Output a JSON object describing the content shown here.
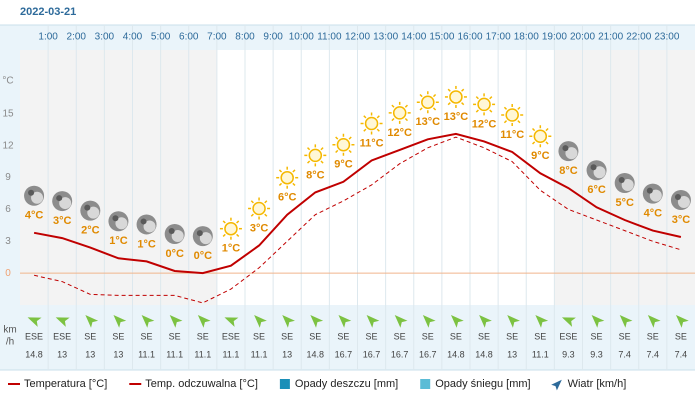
{
  "chart_data": {
    "type": "line",
    "title": "2022-03-21",
    "categories": [
      null,
      "1:00",
      "2:00",
      "3:00",
      "4:00",
      "5:00",
      "6:00",
      "7:00",
      "8:00",
      "9:00",
      "10:00",
      "11:00",
      "12:00",
      "13:00",
      "14:00",
      "15:00",
      "16:00",
      "17:00",
      "18:00",
      "19:00",
      "20:00",
      "21:00",
      "22:00",
      "23:00"
    ],
    "y_label": "°C",
    "ylim": [
      -3,
      21
    ],
    "yticks": [
      0,
      3,
      6,
      9,
      12,
      15
    ],
    "series": [
      {
        "name": "Temperatura [°C]",
        "color": "#c00000",
        "dash": false,
        "values": [
          3.8,
          3.3,
          2.4,
          1.4,
          1.1,
          0.2,
          0.0,
          0.7,
          2.6,
          5.5,
          7.6,
          8.6,
          10.6,
          11.6,
          12.6,
          13.1,
          12.4,
          11.4,
          9.4,
          8.0,
          6.2,
          5.0,
          4.0,
          3.4
        ],
        "value_labels": [
          "4°C",
          "3°C",
          "2°C",
          "1°C",
          "1°C",
          "0°C",
          "0°C",
          "1°C",
          "3°C",
          "6°C",
          "8°C",
          "9°C",
          "11°C",
          "12°C",
          "13°C",
          "13°C",
          "12°C",
          "11°C",
          "9°C",
          "8°C",
          "6°C",
          "5°C",
          "4°C",
          "3°C"
        ]
      },
      {
        "name": "Temp. odczuwalna [°C]",
        "color": "#c00000",
        "dash": true,
        "values": [
          -0.2,
          -0.8,
          -2.0,
          -2.1,
          -2.1,
          -2.1,
          -2.8,
          -1.5,
          0.5,
          3.0,
          5.5,
          6.8,
          8.3,
          10.3,
          11.8,
          12.8,
          11.8,
          10.5,
          7.8,
          6.0,
          5.0,
          4.0,
          3.0,
          2.2
        ]
      }
    ],
    "sky": [
      "moon",
      "moon",
      "moon",
      "moon",
      "moon",
      "moon",
      "moon",
      "sun",
      "sun",
      "sun",
      "sun",
      "sun",
      "sun",
      "sun",
      "sun",
      "sun",
      "sun",
      "sun",
      "sun",
      "moon",
      "moon",
      "moon",
      "moon",
      "moon"
    ],
    "legend_extra": [
      {
        "name": "Opady deszczu [mm]",
        "color": "#1a8fb8"
      },
      {
        "name": "Opady śniegu [mm]",
        "color": "#5bbcd6"
      }
    ],
    "wind": {
      "name": "Wiatr [km/h]",
      "unit_lines": [
        "km",
        "/h"
      ],
      "color": "#7cc242",
      "directions": [
        "ESE",
        "ESE",
        "SE",
        "SE",
        "SE",
        "SE",
        "SE",
        "ESE",
        "SE",
        "SE",
        "SE",
        "SE",
        "SE",
        "SE",
        "SE",
        "SE",
        "SE",
        "SE",
        "SE",
        "ESE",
        "SE",
        "SE",
        "SE",
        "SE"
      ],
      "speeds": [
        14.8,
        13,
        13,
        13,
        11.1,
        11.1,
        11.1,
        11.1,
        11.1,
        13,
        14.8,
        16.7,
        16.7,
        16.7,
        16.7,
        14.8,
        14.8,
        13,
        11.1,
        9.3,
        9.3,
        7.4,
        7.4,
        7.4
      ]
    }
  }
}
